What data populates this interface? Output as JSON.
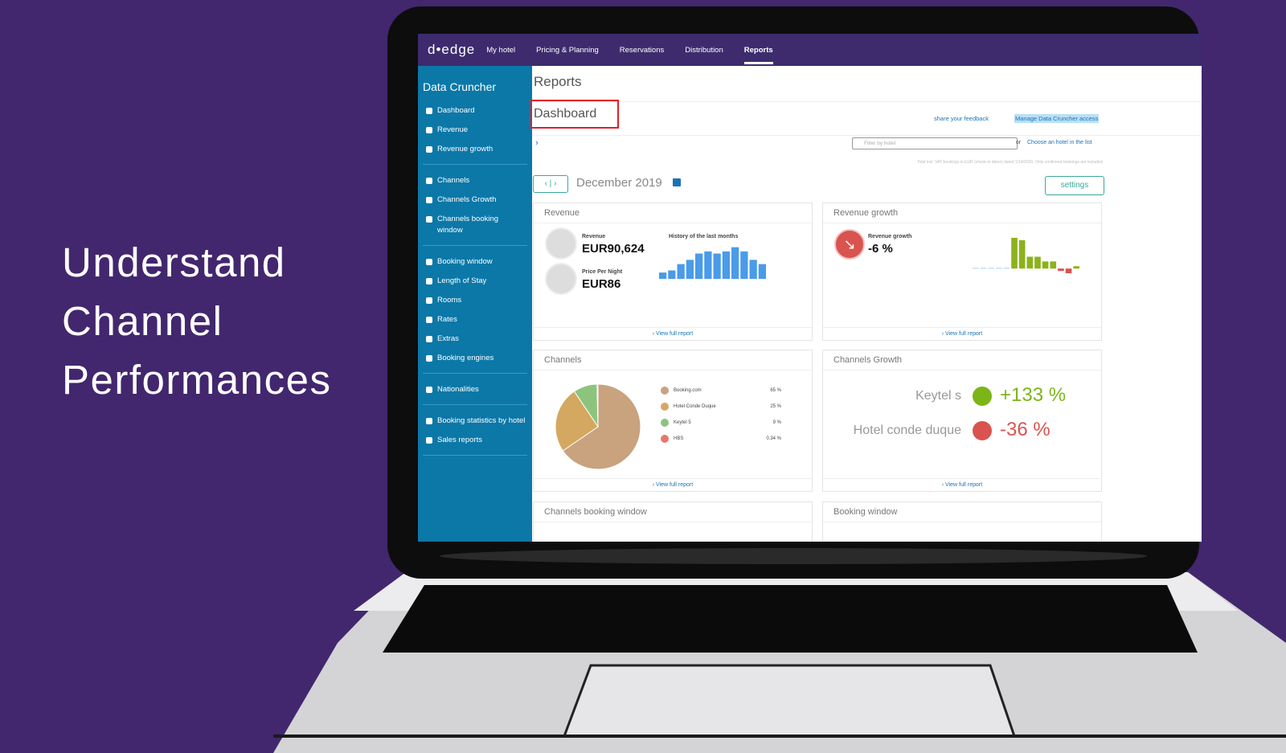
{
  "headline": [
    "Understand",
    "Channel",
    "Performances"
  ],
  "nav": {
    "logo": "d•edge",
    "items": [
      "My hotel",
      "Pricing & Planning",
      "Reservations",
      "Distribution",
      "Reports"
    ]
  },
  "sidebar": {
    "title": "Data Cruncher",
    "groups": [
      [
        "Dashboard",
        "Revenue",
        "Revenue growth"
      ],
      [
        "Channels",
        "Channels Growth",
        "Channels booking window"
      ],
      [
        "Booking window",
        "Length of Stay",
        "Rooms",
        "Rates",
        "Extras",
        "Booking engines"
      ],
      [
        "Nationalities"
      ],
      [
        "Booking statistics by hotel",
        "Sales reports"
      ]
    ]
  },
  "content": {
    "section": "Reports",
    "page_title": "Dashboard",
    "feedback": "share your feedback",
    "access": "Manage Data Cruncher access",
    "filter_placeholder": "Filter by hotel",
    "or": "or",
    "choose": "Choose an hotel in the list",
    "note": "Total incl. VAT bookings in EUR (check-in dates) dated 1/14/2020. Only confirmed bookings are included.",
    "month": "December 2019",
    "settings": "settings"
  },
  "revenue_card": {
    "title": "Revenue",
    "revenue_label": "Revenue",
    "revenue_value": "EUR90,624",
    "ppn_label": "Price Per Night",
    "ppn_value": "EUR86",
    "history_label": "History of the last months",
    "history": {
      "values": [
        3,
        4,
        7,
        9,
        12,
        13,
        12,
        13,
        15,
        13,
        9,
        7
      ],
      "ylim": [
        0,
        16
      ],
      "color": "#4a9be8"
    },
    "link": "› View full report"
  },
  "growth_card": {
    "title": "Revenue growth",
    "label": "Revenue growth",
    "value": "-6 %",
    "bars": {
      "values": [
        0.3,
        0.3,
        0.3,
        0.3,
        0.3,
        13,
        12,
        5,
        5,
        3,
        3,
        -1,
        -2,
        1
      ],
      "ylim": [
        -3,
        14
      ],
      "pos_color": "#8cb21c",
      "neg_color": "#d9534f",
      "small_color": "#a6d0ef"
    },
    "link": "› View full report"
  },
  "channels_card": {
    "title": "Channels",
    "chart_data": {
      "type": "pie",
      "categories": [
        "Booking.com",
        "Hotel Conde Duque",
        "Keytel 5",
        "HBS"
      ],
      "values": [
        65,
        25,
        9,
        0.34
      ],
      "value_labels": [
        "65 %",
        "25 %",
        "9 %",
        "0.34 %"
      ],
      "colors": [
        "#c9a27e",
        "#d4a860",
        "#8cc47e",
        "#e8776a"
      ]
    },
    "link": "› View full report"
  },
  "channels_growth_card": {
    "title": "Channels Growth",
    "rows": [
      {
        "name": "Keytel s",
        "value": "+133 %",
        "color": "#7cb518"
      },
      {
        "name": "Hotel conde duque",
        "value": "-36 %",
        "color": "#d9534f"
      }
    ],
    "link": "› View full report"
  },
  "bottom_cards": [
    "Channels booking window",
    "Booking window"
  ]
}
